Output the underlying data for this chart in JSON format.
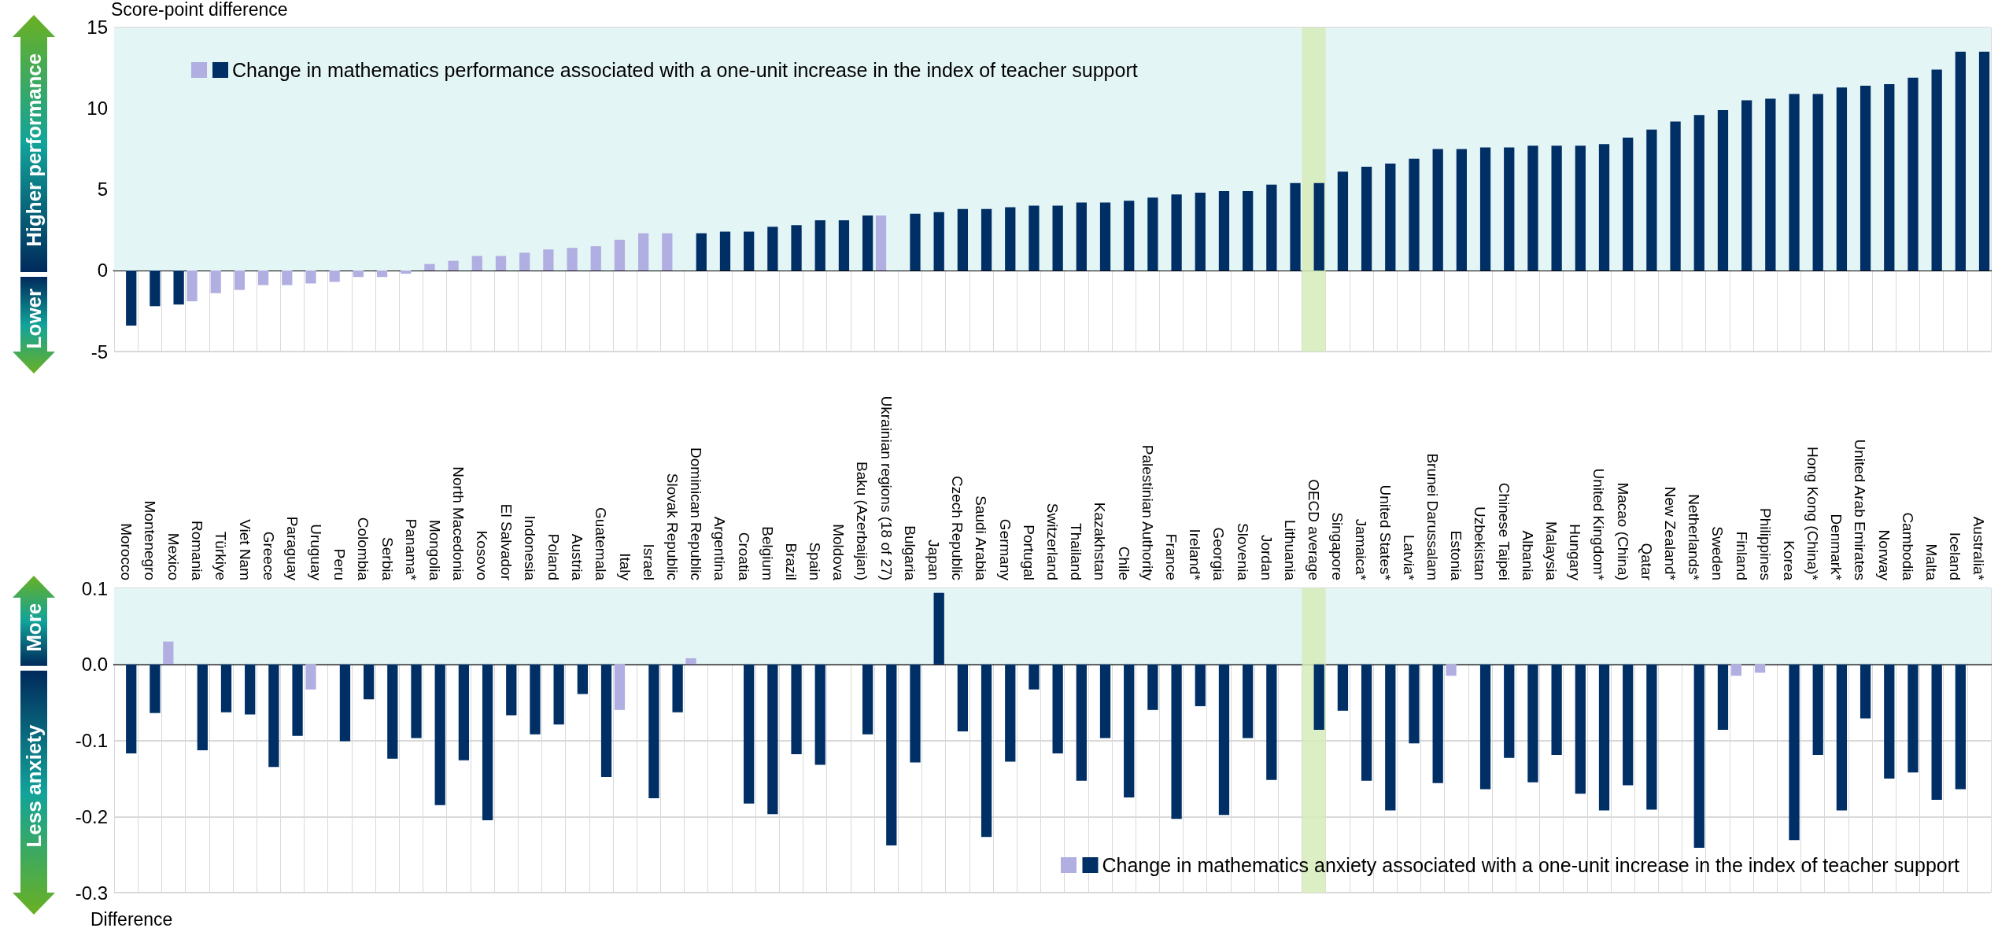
{
  "chart_data": [
    {
      "type": "bar",
      "ylabel": "Score-point difference",
      "categories": [
        "Morocco",
        "Montenegro",
        "Mexico",
        "Romania",
        "Türkiye",
        "Viet Nam",
        "Greece",
        "Paraguay",
        "Uruguay",
        "Peru",
        "Colombia",
        "Serbia",
        "Panama*",
        "Mongolia",
        "North Macedonia",
        "Kosovo",
        "El Salvador",
        "Indonesia",
        "Poland",
        "Austria",
        "Guatemala",
        "Italy",
        "Israel",
        "Slovak Republic",
        "Dominican Republic",
        "Argentina",
        "Croatia",
        "Belgium",
        "Brazil",
        "Spain",
        "Moldova",
        "Baku (Azerbaijan)",
        "Ukrainian regions (18 of 27)",
        "Bulgaria",
        "Japan",
        "Czech Republic",
        "Saudi Arabia",
        "Germany",
        "Portugal",
        "Switzerland",
        "Thailand",
        "Kazakhstan",
        "Chile",
        "Palestinian Authority",
        "France",
        "Ireland*",
        "Georgia",
        "Slovenia",
        "Jordan",
        "Lithuania",
        "OECD average",
        "Singapore",
        "Jamaica*",
        "United States*",
        "Latvia*",
        "Brunei Darussalam",
        "Estonia",
        "Uzbekistan",
        "Chinese Taipei",
        "Albania",
        "Malaysia",
        "Hungary",
        "United Kingdom*",
        "Macao (China)",
        "Qatar",
        "New Zealand*",
        "Netherlands*",
        "Sweden",
        "Finland",
        "Philippines",
        "Korea",
        "Hong Kong (China)*",
        "Denmark*",
        "United Arab Emirates",
        "Norway",
        "Cambodia",
        "Malta",
        "Iceland",
        "Australia*"
      ],
      "series": [
        {
          "color": "#b1afe2",
          "values": [
            null,
            null,
            null,
            -1.9,
            -1.4,
            -1.2,
            -0.9,
            -0.9,
            -0.8,
            -0.7,
            -0.4,
            -0.4,
            -0.2,
            0.4,
            0.6,
            0.9,
            0.9,
            1.1,
            1.3,
            1.4,
            1.5,
            1.9,
            2.3,
            2.3,
            null,
            null,
            null,
            null,
            null,
            null,
            null,
            null,
            3.4,
            null,
            null,
            null,
            null,
            null,
            null,
            null,
            null,
            null,
            null,
            null,
            null,
            null,
            null,
            null,
            null,
            null,
            null,
            null,
            null,
            null,
            null,
            null,
            null,
            null,
            null,
            null,
            null,
            null,
            null,
            null,
            null,
            null,
            null,
            null,
            null,
            null,
            null,
            null,
            null,
            null,
            null,
            null,
            null,
            null,
            null
          ]
        },
        {
          "name": "Change in mathematics performance associated with a one-unit increase in the index of teacher support",
          "color": "#002f66",
          "values": [
            -3.4,
            -2.2,
            -2.1,
            null,
            null,
            null,
            null,
            null,
            null,
            null,
            null,
            null,
            null,
            null,
            null,
            null,
            null,
            null,
            null,
            null,
            null,
            null,
            null,
            null,
            2.3,
            2.4,
            2.4,
            2.7,
            2.8,
            3.1,
            3.1,
            3.4,
            null,
            3.5,
            3.6,
            3.8,
            3.8,
            3.9,
            4.0,
            4.0,
            4.2,
            4.2,
            4.3,
            4.5,
            4.7,
            4.8,
            4.9,
            4.9,
            5.3,
            5.4,
            5.4,
            6.1,
            6.4,
            6.6,
            6.9,
            7.5,
            7.5,
            7.6,
            7.6,
            7.7,
            7.7,
            7.7,
            7.8,
            8.2,
            8.7,
            9.2,
            9.6,
            9.9,
            10.5,
            10.6,
            10.9,
            10.9,
            11.3,
            11.4,
            11.5,
            11.9,
            12.4,
            13.5,
            13.5
          ]
        }
      ],
      "ylim": [
        -5,
        15
      ],
      "yticks": [
        -5,
        0,
        5,
        10,
        15
      ],
      "grid": true,
      "tick_labels": "y",
      "legend": "top left",
      "bands": [
        {
          "axis": "y",
          "from": 0,
          "to": 15,
          "color": "#e4f5f5"
        },
        {
          "axis": "x",
          "from": "OECD average",
          "to": "OECD average",
          "color": "#d6ebb8"
        }
      ],
      "annotations": [
        "Higher performance",
        "Lower"
      ]
    },
    {
      "type": "bar",
      "ylabel": "Difference",
      "categories": [
        "Morocco",
        "Montenegro",
        "Mexico",
        "Romania",
        "Türkiye",
        "Viet Nam",
        "Greece",
        "Paraguay",
        "Uruguay",
        "Peru",
        "Colombia",
        "Serbia",
        "Panama*",
        "Mongolia",
        "North Macedonia",
        "Kosovo",
        "El Salvador",
        "Indonesia",
        "Poland",
        "Austria",
        "Guatemala",
        "Italy",
        "Israel",
        "Slovak Republic",
        "Dominican Republic",
        "Argentina",
        "Croatia",
        "Belgium",
        "Brazil",
        "Spain",
        "Moldova",
        "Baku (Azerbaijan)",
        "Ukrainian regions (18 of 27)",
        "Bulgaria",
        "Japan",
        "Czech Republic",
        "Saudi Arabia",
        "Germany",
        "Portugal",
        "Switzerland",
        "Thailand",
        "Kazakhstan",
        "Chile",
        "Palestinian Authority",
        "France",
        "Ireland*",
        "Georgia",
        "Slovenia",
        "Jordan",
        "Lithuania",
        "OECD average",
        "Singapore",
        "Jamaica*",
        "United States*",
        "Latvia*",
        "Brunei Darussalam",
        "Estonia",
        "Uzbekistan",
        "Chinese Taipei",
        "Albania",
        "Malaysia",
        "Hungary",
        "United Kingdom*",
        "Macao (China)",
        "Qatar",
        "New Zealand*",
        "Netherlands*",
        "Sweden",
        "Finland",
        "Philippines",
        "Korea",
        "Hong Kong (China)*",
        "Denmark*",
        "United Arab Emirates",
        "Norway",
        "Cambodia",
        "Malta",
        "Iceland",
        "Australia*"
      ],
      "series": [
        {
          "color": "#b1afe2",
          "values": [
            null,
            null,
            0.03,
            null,
            null,
            null,
            null,
            null,
            -0.033,
            null,
            null,
            null,
            null,
            null,
            null,
            null,
            null,
            null,
            null,
            null,
            null,
            -0.06,
            null,
            null,
            0.008,
            null,
            null,
            null,
            null,
            null,
            null,
            null,
            null,
            null,
            null,
            null,
            null,
            null,
            null,
            null,
            null,
            null,
            null,
            null,
            null,
            null,
            null,
            null,
            null,
            null,
            null,
            null,
            null,
            null,
            null,
            null,
            -0.015,
            null,
            null,
            null,
            null,
            null,
            null,
            null,
            null,
            null,
            null,
            null,
            -0.015,
            -0.011,
            null,
            null,
            null,
            null,
            null,
            null,
            null,
            null,
            null
          ]
        },
        {
          "name": "Change in mathematics anxiety associated with a one-unit increase in the index of teacher support",
          "color": "#002f66",
          "values": [
            -0.117,
            -0.064,
            null,
            -0.113,
            -0.063,
            -0.066,
            -0.135,
            -0.094,
            null,
            -0.101,
            -0.046,
            -0.124,
            -0.097,
            -0.185,
            -0.126,
            -0.205,
            -0.067,
            -0.092,
            -0.079,
            -0.039,
            -0.148,
            null,
            -0.176,
            -0.063,
            null,
            null,
            -0.183,
            -0.197,
            -0.118,
            -0.132,
            null,
            -0.092,
            -0.238,
            -0.129,
            0.094,
            -0.088,
            -0.227,
            -0.128,
            -0.033,
            -0.117,
            -0.153,
            -0.097,
            -0.175,
            -0.06,
            -0.203,
            -0.055,
            -0.198,
            -0.097,
            -0.152,
            null,
            -0.086,
            -0.061,
            -0.153,
            -0.192,
            -0.104,
            -0.156,
            null,
            -0.164,
            -0.123,
            -0.155,
            -0.119,
            -0.17,
            -0.192,
            -0.159,
            -0.191,
            null,
            -0.241,
            -0.086,
            null,
            null,
            -0.231,
            -0.119,
            -0.192,
            -0.071,
            -0.15,
            -0.142,
            -0.178,
            -0.164,
            null
          ]
        }
      ],
      "ylim": [
        -0.3,
        0.1
      ],
      "yticks": [
        -0.3,
        -0.2,
        -0.1,
        {
          "value": 0,
          "label": "0.0"
        },
        0.1
      ],
      "grid": true,
      "legend": "bottom right",
      "bands": [
        {
          "axis": "y",
          "from": 0,
          "to": 0.1,
          "color": "#e4f5f5"
        },
        {
          "axis": "x",
          "from": "OECD average",
          "to": "OECD average",
          "color": "#d6ebb8"
        }
      ],
      "annotations": [
        "More",
        "Less anxiety"
      ]
    }
  ]
}
